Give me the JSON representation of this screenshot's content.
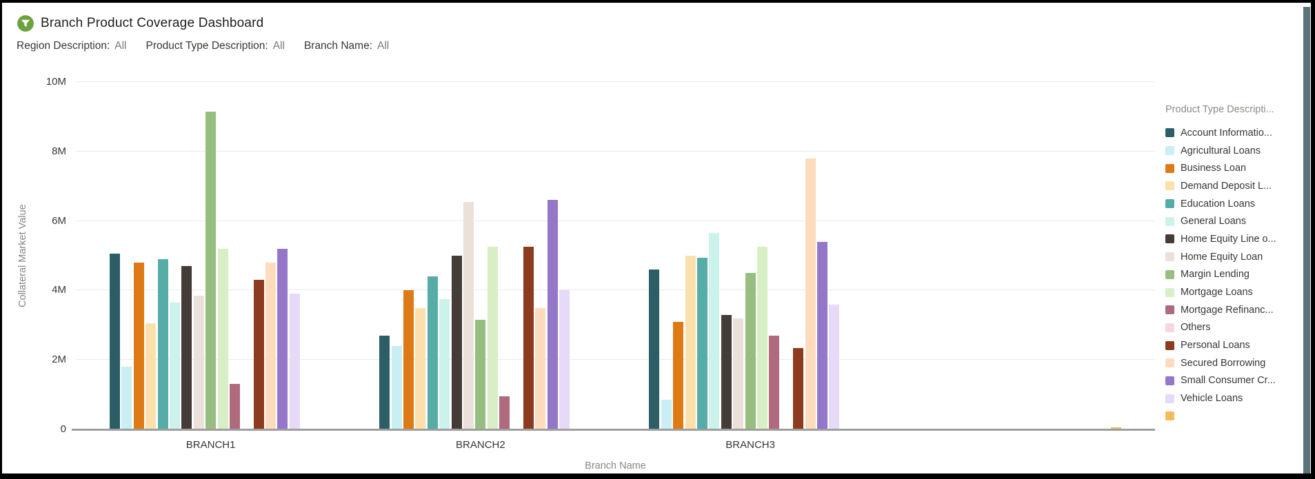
{
  "header": {
    "title": "Branch Product Coverage Dashboard",
    "icon": "funnel-icon",
    "icon_bg_color": "#6CA23E",
    "icon_glyph_color": "#ffffff"
  },
  "filters": [
    {
      "label": "Region Description:",
      "value": "All"
    },
    {
      "label": "Product Type Description:",
      "value": "All"
    },
    {
      "label": "Branch Name:",
      "value": "All"
    }
  ],
  "chart_data": {
    "type": "bar",
    "title": "",
    "xlabel": "Branch Name",
    "ylabel": "Collateral Market Value",
    "unit": "M",
    "ylim": [
      0,
      10
    ],
    "y_ticks": [
      {
        "value": 0,
        "label": "0"
      },
      {
        "value": 2,
        "label": "2M"
      },
      {
        "value": 4,
        "label": "4M"
      },
      {
        "value": 6,
        "label": "6M"
      },
      {
        "value": 8,
        "label": "8M"
      },
      {
        "value": 10,
        "label": "10M"
      }
    ],
    "grid": true,
    "legend_position": "right",
    "legend_title": "Product Type Descripti...",
    "categories": [
      "BRANCH1",
      "BRANCH2",
      "BRANCH3",
      ""
    ],
    "series": [
      {
        "name": "Account Informatio...",
        "color": "#2B5E66",
        "values": [
          5.05,
          2.7,
          4.6,
          0
        ]
      },
      {
        "name": "Agricultural Loans",
        "color": "#C9EEF4",
        "values": [
          1.8,
          2.4,
          0.85,
          0
        ]
      },
      {
        "name": "Business Loan",
        "color": "#DD7A15",
        "values": [
          4.8,
          4.0,
          3.1,
          0
        ]
      },
      {
        "name": "Demand Deposit L...",
        "color": "#FCE0AB",
        "values": [
          3.05,
          3.5,
          5.0,
          0
        ]
      },
      {
        "name": "Education Loans",
        "color": "#56ACA6",
        "values": [
          4.9,
          4.4,
          4.95,
          0
        ]
      },
      {
        "name": "General Loans",
        "color": "#CCF2EC",
        "values": [
          3.65,
          3.75,
          5.65,
          0
        ]
      },
      {
        "name": "Home Equity Line o...",
        "color": "#443C36",
        "values": [
          4.7,
          5.0,
          3.3,
          0
        ]
      },
      {
        "name": "Home Equity Loan",
        "color": "#EBE0DA",
        "values": [
          3.85,
          6.55,
          3.2,
          0
        ]
      },
      {
        "name": "Margin Lending",
        "color": "#95BE80",
        "values": [
          9.15,
          3.15,
          4.5,
          0
        ]
      },
      {
        "name": "Mortgage Loans",
        "color": "#D8EFC5",
        "values": [
          5.2,
          5.25,
          5.25,
          0
        ]
      },
      {
        "name": "Mortgage Refinanc...",
        "color": "#B06A7E",
        "values": [
          1.3,
          0.95,
          2.7,
          0
        ]
      },
      {
        "name": "Others",
        "color": "#F6D7E1",
        "values": [
          0,
          0,
          0,
          0
        ]
      },
      {
        "name": "Personal Loans",
        "color": "#8D3B1F",
        "values": [
          4.3,
          5.25,
          2.35,
          0
        ]
      },
      {
        "name": "Secured Borrowing",
        "color": "#FDDCBE",
        "values": [
          4.8,
          3.5,
          7.8,
          0
        ]
      },
      {
        "name": "Small Consumer Cr...",
        "color": "#9577C9",
        "values": [
          5.2,
          6.6,
          5.4,
          0
        ]
      },
      {
        "name": "Vehicle Loans",
        "color": "#E7D9F8",
        "values": [
          3.9,
          4.0,
          3.6,
          0
        ]
      },
      {
        "name": "",
        "color": "#F6BC5C",
        "values": [
          0,
          0,
          0,
          0.05
        ]
      }
    ]
  },
  "colors": {
    "gridline": "#e9ebf2",
    "axis_line": "#9e9e9e",
    "tick_text": "#3a3632",
    "axis_title_text": "#8a8680",
    "scrollbar": "#5D737C"
  }
}
